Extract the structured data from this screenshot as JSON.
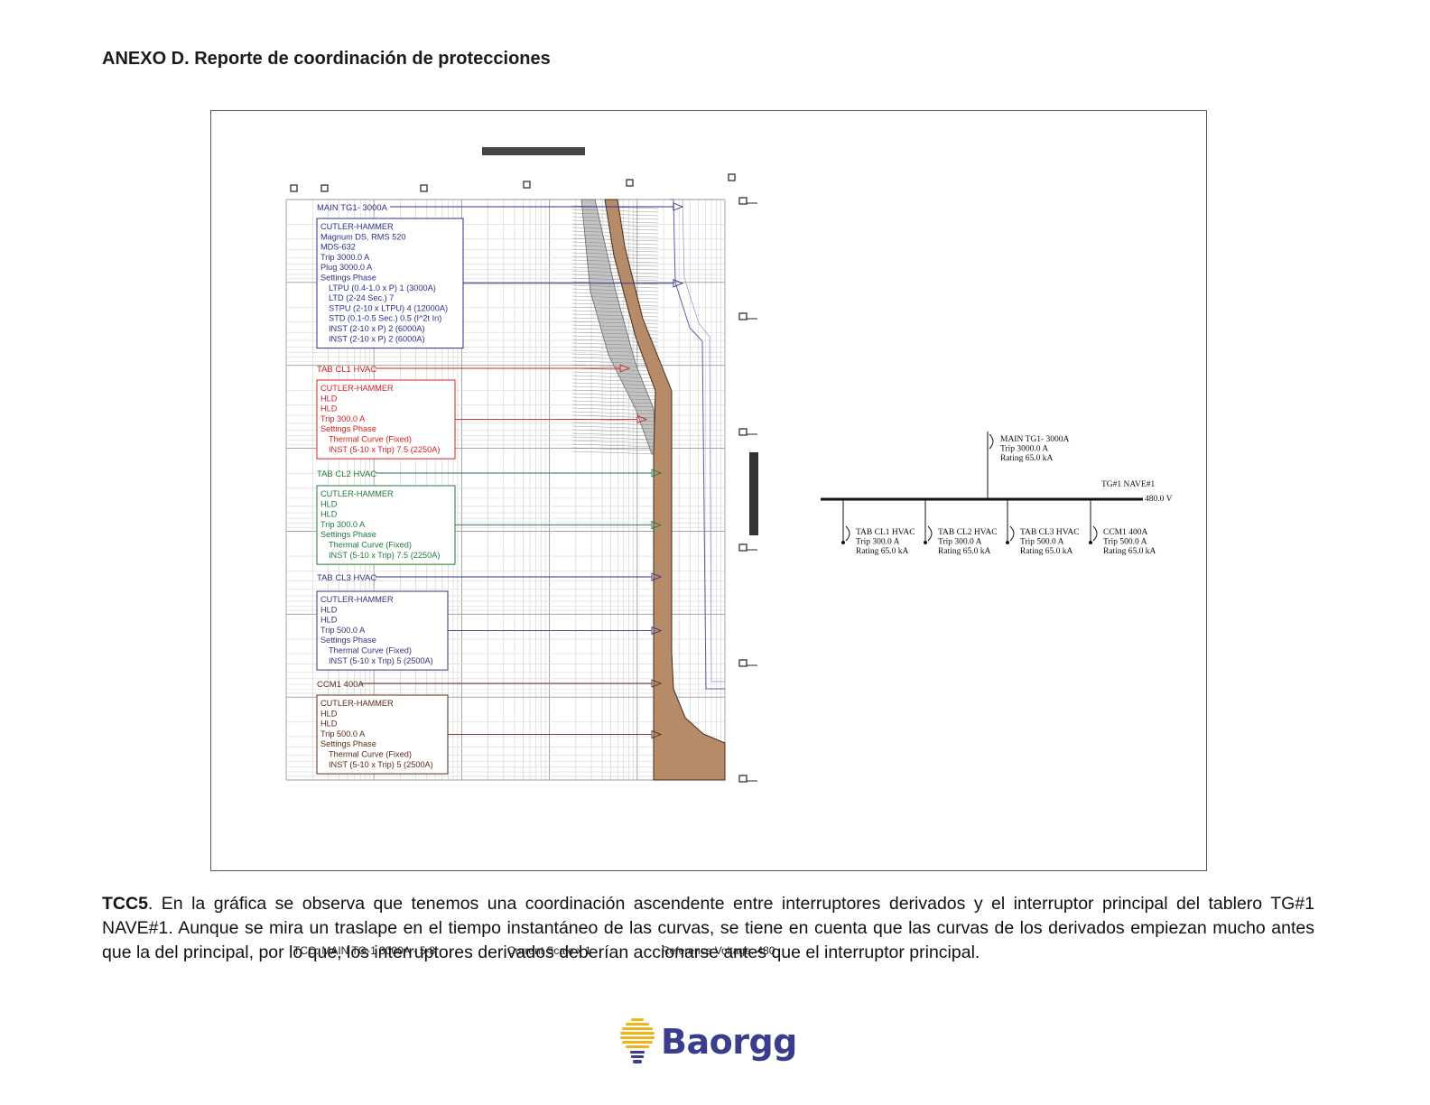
{
  "heading": "ANEXO D. Reporte de coordinación de protecciones",
  "tcc": {
    "breakers": [
      {
        "name": "MAIN TG1- 3000A",
        "color": "#2b2f8a",
        "lines": [
          "CUTLER-HAMMER",
          "Magnum DS, RMS 520",
          "MDS-632",
          "Trip 3000.0 A",
          "Plug 3000.0 A",
          "Settings Phase",
          "LTPU (0.4-1.0 x P) 1 (3000A)",
          "LTD (2-24 Sec.) 7",
          "STPU (2-10 x LTPU) 4 (12000A)",
          "STD (0.1-0.5 Sec.) 0.5 (I^2t In)",
          "INST (2-10 x P) 2 (6000A)",
          "INST (2-10 x P) 2 (6000A)"
        ]
      },
      {
        "name": "TAB CL1 HVAC",
        "color": "#d42020",
        "lines": [
          "CUTLER-HAMMER",
          "HLD",
          "HLD",
          "Trip 300.0 A",
          "Settings Phase",
          "Thermal Curve (Fixed)",
          "INST (5-10 x Trip) 7.5 (2250A)"
        ]
      },
      {
        "name": "TAB CL2 HVAC",
        "color": "#1f7a3a",
        "lines": [
          "CUTLER-HAMMER",
          "HLD",
          "HLD",
          "Trip 300.0 A",
          "Settings Phase",
          "Thermal Curve (Fixed)",
          "INST (5-10 x Trip) 7.5 (2250A)"
        ]
      },
      {
        "name": "TAB CL3 HVAC",
        "color": "#3d2f7a",
        "lines": [
          "CUTLER-HAMMER",
          "HLD",
          "HLD",
          "Trip 500.0 A",
          "Settings Phase",
          "Thermal Curve (Fixed)",
          "INST (5-10 x Trip) 5 (2500A)"
        ]
      },
      {
        "name": "CCM1 400A",
        "color": "#5a2a16",
        "lines": [
          "CUTLER-HAMMER",
          "HLD",
          "HLD",
          "Trip 500.0 A",
          "Settings Phase",
          "Thermal Curve (Fixed)",
          "INST (5-10 x Trip) 5 (2500A)"
        ]
      }
    ],
    "footer": {
      "tcc": "TCC:  MAIN TG-1 3000A - 5-8",
      "scale": "Current Scale  x 1",
      "voltage": "Reference Voltage: 480"
    }
  },
  "one_line": {
    "main": {
      "name": "MAIN TG1- 3000A",
      "trip": "Trip 3000.0 A",
      "rating": "Rating 65.0 kA"
    },
    "bus": {
      "name": "TG#1 NAVE#1",
      "voltage": "480.0 V"
    },
    "feeders": [
      {
        "name": "TAB CL1 HVAC",
        "trip": "Trip 300.0 A",
        "rating": "Rating 65.0 kA"
      },
      {
        "name": "TAB CL2 HVAC",
        "trip": "Trip 300.0 A",
        "rating": "Rating 65.0 kA"
      },
      {
        "name": "TAB CL3 HVAC",
        "trip": "Trip 500.0 A",
        "rating": "Rating 65.0 kA"
      },
      {
        "name": "CCM1 400A",
        "trip": "Trip 500.0 A",
        "rating": "Rating 65.0 kA"
      }
    ]
  },
  "caption": {
    "lead": "TCC5",
    "text": ". En la gráfica se observa que tenemos una coordinación ascendente entre interruptores derivados y el interruptor principal del tablero TG#1 NAVE#1. Aunque se mira un traslape en el tiempo instantáneo de las curvas, se tiene en cuenta que las curvas de los derivados empiezan mucho antes que la del principal, por lo que, los interruptores derivados deberían accionarse antes que el interruptor principal."
  },
  "logo": {
    "text": "Baorgg",
    "colors": {
      "text": "#3a3d8c",
      "bulb": "#f2b21c"
    }
  }
}
